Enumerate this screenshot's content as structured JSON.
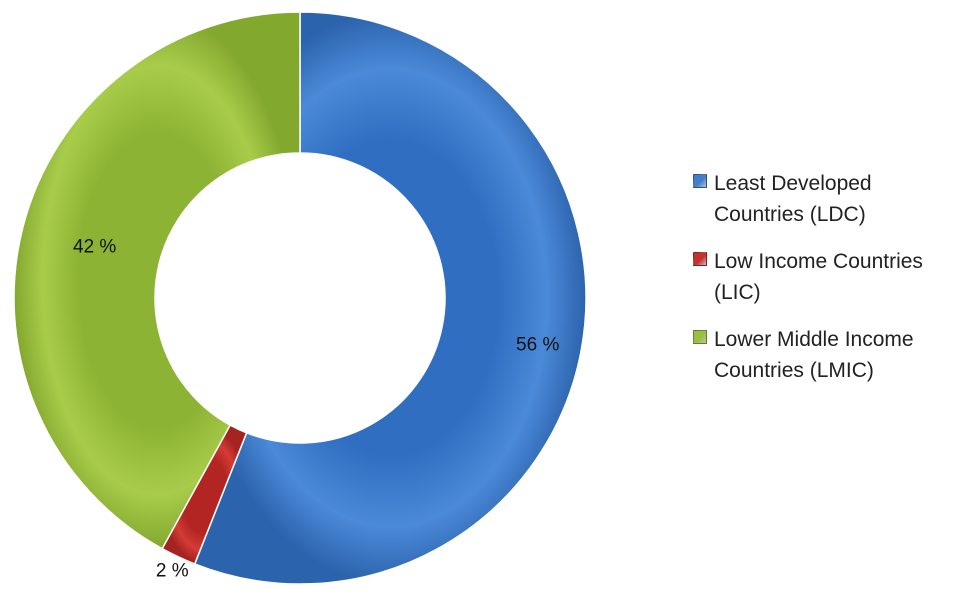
{
  "chart_data": {
    "type": "pie",
    "variant": "donut",
    "title": "",
    "categories": [
      "Least Developed Countries (LDC)",
      "Low Income Countries (LIC)",
      "Lower Middle Income Countries (LMIC)"
    ],
    "values": [
      56,
      2,
      42
    ],
    "data_labels": [
      "56 %",
      "2 %",
      "42 %"
    ],
    "colors": [
      "#3f7fd0",
      "#c8302c",
      "#9ac03f"
    ],
    "legend": {
      "placement": "right",
      "entries": [
        "Least Developed Countries (LDC)",
        "Low Income Countries (LIC)",
        "Lower Middle Income Countries (LMIC)"
      ]
    }
  }
}
